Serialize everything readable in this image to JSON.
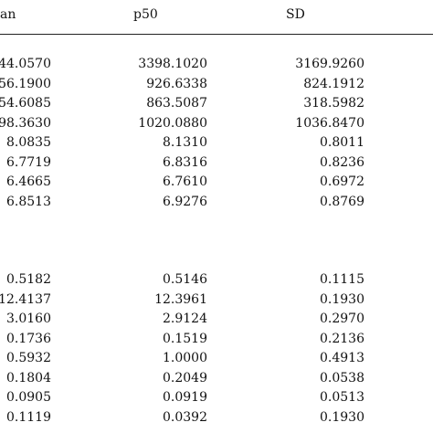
{
  "header": {
    "mean_label": "an",
    "p50_label": "p50",
    "sd_label": "SD"
  },
  "group_a": [
    {
      "mean": "44.0570",
      "p50": "3398.1020",
      "sd": "3169.9260"
    },
    {
      "mean": "56.1900",
      "p50": "926.6338",
      "sd": "824.1912"
    },
    {
      "mean": "54.6085",
      "p50": "863.5087",
      "sd": "318.5982"
    },
    {
      "mean": "98.3630",
      "p50": "1020.0880",
      "sd": "1036.8470"
    },
    {
      "mean": "8.0835",
      "p50": "8.1310",
      "sd": "0.8011"
    },
    {
      "mean": "6.7719",
      "p50": "6.8316",
      "sd": "0.8236"
    },
    {
      "mean": "6.4665",
      "p50": "6.7610",
      "sd": "0.6972"
    },
    {
      "mean": "6.8513",
      "p50": "6.9276",
      "sd": "0.8769"
    }
  ],
  "group_b": [
    {
      "mean": "0.5182",
      "p50": "0.5146",
      "sd": "0.1115"
    },
    {
      "mean": "12.4137",
      "p50": "12.3961",
      "sd": "0.1930"
    },
    {
      "mean": "3.0160",
      "p50": "2.9124",
      "sd": "0.2970"
    },
    {
      "mean": "0.1736",
      "p50": "0.1519",
      "sd": "0.2136"
    },
    {
      "mean": "0.5932",
      "p50": "1.0000",
      "sd": "0.4913"
    },
    {
      "mean": "0.1804",
      "p50": "0.2049",
      "sd": "0.0538"
    },
    {
      "mean": "0.0905",
      "p50": "0.0919",
      "sd": "0.0513"
    },
    {
      "mean": "0.1119",
      "p50": "0.0392",
      "sd": "0.1930"
    }
  ]
}
